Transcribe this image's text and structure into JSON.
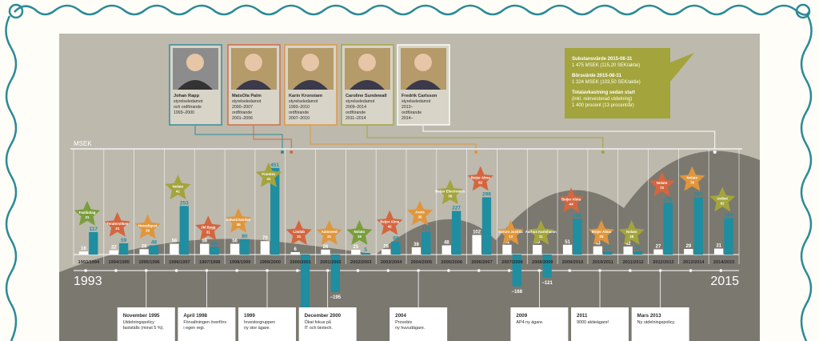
{
  "colors": {
    "background": "#bdb9ad",
    "bar_teal": "#1f8ea0",
    "bar_white": "#ffffff",
    "frame": "#2a8a97",
    "callout_green": "#a3a43c",
    "text_dark": "#2b2b2b"
  },
  "icons": [
    "scroll-border-ornament",
    "star-badge",
    "portrait-photo"
  ],
  "board": [
    {
      "name": "Johan Rapp",
      "role": "styrelseledamot",
      "role2": "och ordförande",
      "years": "1993–2000",
      "frame_color": "#2a8a97"
    },
    {
      "name": "MatsOla Palm",
      "role": "styrelseledamot",
      "role2": "2000–2007",
      "role3": "ordförande",
      "years": "2001–2006",
      "frame_color": "#d4663f"
    },
    {
      "name": "Karin Kronstam",
      "role": "styrelseledamot",
      "role2": "1993–2010",
      "role3": "ordförande",
      "years": "2007–2010",
      "frame_color": "#e0963c"
    },
    {
      "name": "Caroline Sundewall",
      "role": "styrelseledamot",
      "role2": "2009–2014",
      "role3": "ordförande",
      "years": "2011–2014",
      "frame_color": "#a3a43c"
    },
    {
      "name": "Fredrik Carlsson",
      "role": "styrelseledamot",
      "role2": "2013–",
      "role3": "ordförande",
      "years": "2014–",
      "frame_color": "#ffffff"
    }
  ],
  "callout": {
    "title1": "Substansvärde 2015-08-31",
    "value1": "1 475 MSEK (115,20 SEK/aktie)",
    "title2": "Börsvärde 2015-08-31",
    "value2": "1 324 MSEK (103,50 SEK/aktie)",
    "title3": "Totalavkastning sedan start",
    "note3": "(inkl. reinvesterad utdelning)",
    "value3": "1 400 procent (13 procent/år)"
  },
  "chart_data": {
    "type": "bar",
    "ylabel": "MSEK",
    "year_start": "1993",
    "year_end": "2015",
    "categories": [
      "1993/1994",
      "1994/1995",
      "1995/1996",
      "1996/1997",
      "1997/1998",
      "1998/1999",
      "1999/2000",
      "2000/2001",
      "2001/2002",
      "2002/2003",
      "2003/2004",
      "2004/2005",
      "2005/2006",
      "2006/2007",
      "2007/2008",
      "2008/2009",
      "2009/2010",
      "2010/2011",
      "2011/2012",
      "2012/2013",
      "2013/2014",
      "2014/2015"
    ],
    "series": [
      {
        "values": [
          16,
          22,
          28,
          56,
          56,
          56,
          70,
          6,
          26,
          25,
          28,
          38,
          48,
          102,
          51,
          50,
          51,
          43,
          42,
          27,
          29,
          31
        ]
      },
      {
        "values": [
          117,
          59,
          48,
          253,
          40,
          80,
          451,
          -386,
          -195,
          5,
          68,
          118,
          227,
          298,
          -166,
          -121,
          186,
          17,
          17,
          270,
          297,
          190
        ]
      }
    ],
    "stars": [
      {
        "category": "1993/1994",
        "text": "Fastbolag",
        "value": "31",
        "color": "#7a9e3c"
      },
      {
        "category": "1994/1995",
        "text": "Tendersöken",
        "value": "31",
        "color": "#d4663f"
      },
      {
        "category": "1995/1996",
        "text": "Hexadigest",
        "value": "20",
        "color": "#e0963c"
      },
      {
        "category": "1996/1997",
        "text": "Nolato",
        "value": "41",
        "color": "#a3a43c"
      },
      {
        "category": "1997/1998",
        "text": "JM Bygg",
        "value": "31",
        "color": "#d4663f"
      },
      {
        "category": "1998/1999",
        "text": "Industrivärden",
        "value": "35",
        "color": "#e0963c"
      },
      {
        "category": "1999/2000",
        "text": "Framtex",
        "value": "41",
        "color": "#a3a43c"
      },
      {
        "category": "2000/2001",
        "text": "Lindab",
        "value": "31",
        "color": "#d4663f"
      },
      {
        "category": "2001/2002",
        "text": "Autoneed",
        "value": "31",
        "color": "#e0963c"
      },
      {
        "category": "2002/2003",
        "text": "Nolato",
        "value": "19",
        "color": "#7a9e3c"
      },
      {
        "category": "2003/2004",
        "text": "Beijer Alma",
        "value": "42",
        "color": "#d4663f"
      },
      {
        "category": "2004/2005",
        "text": "Axxis",
        "value": "35",
        "color": "#e0963c"
      },
      {
        "category": "2005/2006",
        "text": "Beijer Electronics",
        "value": "36",
        "color": "#a3a43c"
      },
      {
        "category": "2006/2007",
        "text": "Beijer Alma",
        "value": "62",
        "color": "#d4663f"
      },
      {
        "category": "2007/2008",
        "text": "Intrum Justitia",
        "value": "13",
        "color": "#e0963c"
      },
      {
        "category": "2008/2009",
        "text": "Aarhus Karlshamn",
        "value": "11",
        "color": "#a3a43c"
      },
      {
        "category": "2009/2010",
        "text": "Beijer Alma",
        "value": "44",
        "color": "#d4663f"
      },
      {
        "category": "2010/2011",
        "text": "Beijer Alma",
        "value": "25",
        "color": "#e0963c"
      },
      {
        "category": "2011/2012",
        "text": "Nolato",
        "value": "38",
        "color": "#a3a43c"
      },
      {
        "category": "2012/2013",
        "text": "Nolato",
        "value": "72",
        "color": "#d4663f"
      },
      {
        "category": "2013/2014",
        "text": "Nolato",
        "value": "78",
        "color": "#e0963c"
      },
      {
        "category": "2014/2015",
        "text": "Unibet",
        "value": "62",
        "color": "#a3a43c"
      }
    ]
  },
  "events": [
    {
      "category": "1995/1996",
      "title": "November 1995",
      "line1": "Utdelningspolicy",
      "line2": "fastställs (minst 5 %)."
    },
    {
      "category": "1997/1998",
      "title": "April 1998",
      "line1": "Förvaltningen överförs",
      "line2": "i egen regi."
    },
    {
      "category": "1999/2000",
      "title": "1999",
      "line1": "Investorgruppen",
      "line2": "ny stor ägare."
    },
    {
      "category": "2001/2002",
      "title": "December 2000",
      "line1": "Ökat fokus på",
      "line2": "IT och biotech."
    },
    {
      "category": "2004/2005",
      "title": "2004",
      "line1": "Provobis",
      "line2": "ny huvudägare."
    },
    {
      "category": "2008/2009",
      "title": "2009",
      "line1": "AP4 ny ägare.",
      "line2": ""
    },
    {
      "category": "2010/2011",
      "title": "2011",
      "line1": "9000 aktieägare!",
      "line2": ""
    },
    {
      "category": "2012/2013",
      "title": "Mars 2013",
      "line1": "Ny utdelningspolicy.",
      "line2": ""
    }
  ]
}
